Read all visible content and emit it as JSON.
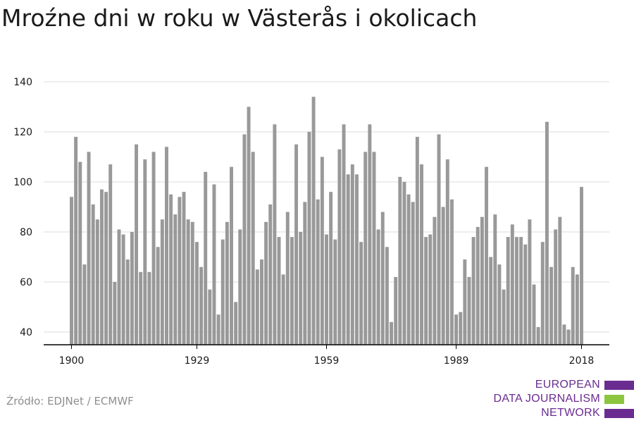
{
  "title": "Mroźne dni w roku w Västerås i okolicach",
  "source": "Źródło: EDJNet / ECMWF",
  "logo": {
    "line1": "EUROPEAN",
    "line2": "DATA JOURNALISM",
    "line3": "NETWORK",
    "colors": [
      "#6a2c91",
      "#8cc63f",
      "#6a2c91"
    ]
  },
  "colors": {
    "bar": "#999999",
    "grid": "#dddddd",
    "axis": "#000000",
    "text": "#1a1a1a"
  },
  "chart_data": {
    "type": "bar",
    "title": "Mroźne dni w roku w Västerås i okolicach",
    "xlabel": "",
    "ylabel": "",
    "ylim": [
      35,
      140
    ],
    "yticks": [
      40,
      60,
      80,
      100,
      120,
      140
    ],
    "xticks": [
      1900,
      1929,
      1959,
      1989,
      2018
    ],
    "grid": true,
    "x": [
      1900,
      1901,
      1902,
      1903,
      1904,
      1905,
      1906,
      1907,
      1908,
      1909,
      1910,
      1911,
      1912,
      1913,
      1914,
      1915,
      1916,
      1917,
      1918,
      1919,
      1920,
      1921,
      1922,
      1923,
      1924,
      1925,
      1926,
      1927,
      1928,
      1929,
      1930,
      1931,
      1932,
      1933,
      1934,
      1935,
      1936,
      1937,
      1938,
      1939,
      1940,
      1941,
      1942,
      1943,
      1944,
      1945,
      1946,
      1947,
      1948,
      1949,
      1950,
      1951,
      1952,
      1953,
      1954,
      1955,
      1956,
      1957,
      1958,
      1959,
      1960,
      1961,
      1962,
      1963,
      1964,
      1965,
      1966,
      1967,
      1968,
      1969,
      1970,
      1971,
      1972,
      1973,
      1974,
      1975,
      1976,
      1977,
      1978,
      1979,
      1980,
      1981,
      1982,
      1983,
      1984,
      1985,
      1986,
      1987,
      1988,
      1989,
      1990,
      1991,
      1992,
      1993,
      1994,
      1995,
      1996,
      1997,
      1998,
      1999,
      2000,
      2001,
      2002,
      2003,
      2004,
      2005,
      2006,
      2007,
      2008,
      2009,
      2010,
      2011,
      2012,
      2013,
      2014,
      2015,
      2016,
      2017,
      2018
    ],
    "values": [
      94,
      118,
      108,
      67,
      112,
      91,
      85,
      97,
      96,
      107,
      60,
      81,
      79,
      69,
      80,
      115,
      64,
      109,
      64,
      112,
      74,
      85,
      114,
      95,
      87,
      94,
      96,
      85,
      84,
      76,
      66,
      104,
      57,
      99,
      47,
      77,
      84,
      106,
      52,
      81,
      119,
      130,
      112,
      65,
      69,
      84,
      91,
      123,
      78,
      63,
      88,
      78,
      115,
      80,
      92,
      120,
      134,
      93,
      110,
      79,
      96,
      77,
      113,
      123,
      103,
      107,
      103,
      76,
      112,
      123,
      112,
      81,
      88,
      74,
      44,
      62,
      102,
      100,
      95,
      92,
      118,
      107,
      78,
      79,
      86,
      119,
      90,
      109,
      93,
      47,
      48,
      69,
      62,
      78,
      82,
      86,
      106,
      70,
      87,
      67,
      57,
      78,
      83,
      78,
      78,
      75,
      85,
      59,
      42,
      76,
      124,
      66,
      81,
      86,
      43,
      41,
      66,
      63,
      98
    ]
  }
}
